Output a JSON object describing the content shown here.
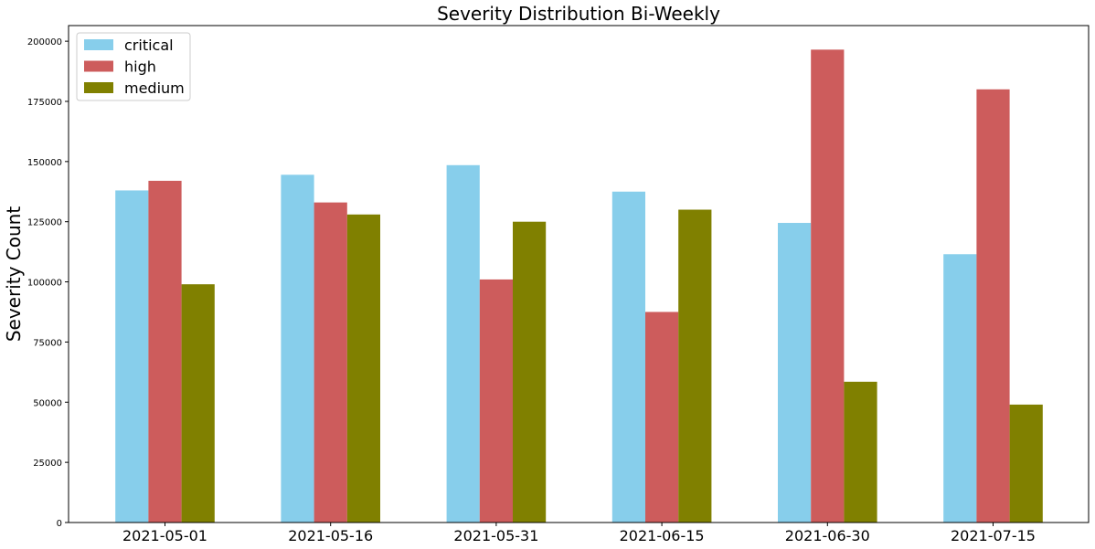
{
  "chart_data": {
    "type": "bar",
    "title": "Severity Distribution Bi-Weekly",
    "y_label": "Severity Count",
    "categories": [
      "2021-05-01",
      "2021-05-16",
      "2021-05-31",
      "2021-06-15",
      "2021-06-30",
      "2021-07-15"
    ],
    "series": [
      {
        "name": "critical",
        "color": "#87ceeb",
        "values": [
          138000,
          144500,
          148500,
          137500,
          124500,
          111500
        ]
      },
      {
        "name": "high",
        "color": "#cd5c5c",
        "values": [
          142000,
          133000,
          101000,
          87500,
          196500,
          180000
        ]
      },
      {
        "name": "medium",
        "color": "#808000",
        "values": [
          99000,
          128000,
          125000,
          130000,
          58500,
          49000
        ]
      }
    ],
    "ylim": [
      0,
      206500
    ],
    "yticks": [
      0,
      25000,
      50000,
      75000,
      100000,
      125000,
      150000,
      175000,
      200000
    ],
    "legend": "upper-left"
  }
}
